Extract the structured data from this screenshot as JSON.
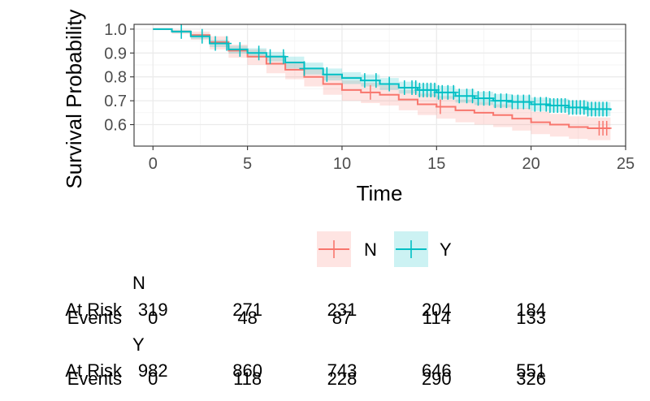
{
  "chart_data": {
    "type": "line",
    "xlabel": "Time",
    "ylabel": "Survival Probability",
    "xlim": [
      -1,
      25
    ],
    "ylim": [
      0.51,
      1.02
    ],
    "x_ticks": [
      "0",
      "5",
      "10",
      "15",
      "20",
      "25"
    ],
    "y_ticks": [
      "0.6",
      "0.7",
      "0.8",
      "0.9",
      "1.0"
    ],
    "grid": true,
    "legend_position": "bottom",
    "series": [
      {
        "name": "N",
        "color": "#F8766D",
        "fill_color": "#F8766D",
        "points": [
          [
            0,
            1.0
          ],
          [
            1,
            0.99
          ],
          [
            2,
            0.975
          ],
          [
            3,
            0.945
          ],
          [
            4,
            0.91
          ],
          [
            5,
            0.885
          ],
          [
            6,
            0.855
          ],
          [
            7,
            0.83
          ],
          [
            8,
            0.8
          ],
          [
            9,
            0.77
          ],
          [
            10,
            0.745
          ],
          [
            11,
            0.735
          ],
          [
            12,
            0.725
          ],
          [
            13,
            0.705
          ],
          [
            14,
            0.685
          ],
          [
            15,
            0.675
          ],
          [
            16,
            0.66
          ],
          [
            17,
            0.65
          ],
          [
            18,
            0.64
          ],
          [
            19,
            0.625
          ],
          [
            20,
            0.61
          ],
          [
            21,
            0.6
          ],
          [
            22,
            0.59
          ],
          [
            23,
            0.585
          ],
          [
            24.2,
            0.585
          ]
        ],
        "ci_upper": [
          [
            0,
            1.0
          ],
          [
            1,
            0.997
          ],
          [
            2,
            0.99
          ],
          [
            3,
            0.97
          ],
          [
            4,
            0.935
          ],
          [
            5,
            0.915
          ],
          [
            6,
            0.89
          ],
          [
            7,
            0.865
          ],
          [
            8,
            0.835
          ],
          [
            9,
            0.81
          ],
          [
            10,
            0.785
          ],
          [
            11,
            0.775
          ],
          [
            12,
            0.765
          ],
          [
            13,
            0.745
          ],
          [
            14,
            0.73
          ],
          [
            15,
            0.72
          ],
          [
            16,
            0.705
          ],
          [
            17,
            0.695
          ],
          [
            18,
            0.685
          ],
          [
            19,
            0.67
          ],
          [
            20,
            0.655
          ],
          [
            21,
            0.645
          ],
          [
            22,
            0.635
          ],
          [
            23,
            0.63
          ],
          [
            24.2,
            0.63
          ]
        ],
        "ci_lower": [
          [
            0,
            1.0
          ],
          [
            1,
            0.98
          ],
          [
            2,
            0.955
          ],
          [
            3,
            0.915
          ],
          [
            4,
            0.88
          ],
          [
            5,
            0.85
          ],
          [
            6,
            0.815
          ],
          [
            7,
            0.79
          ],
          [
            8,
            0.76
          ],
          [
            9,
            0.725
          ],
          [
            10,
            0.7
          ],
          [
            11,
            0.69
          ],
          [
            12,
            0.68
          ],
          [
            13,
            0.66
          ],
          [
            14,
            0.64
          ],
          [
            15,
            0.625
          ],
          [
            16,
            0.61
          ],
          [
            17,
            0.6
          ],
          [
            18,
            0.59
          ],
          [
            19,
            0.575
          ],
          [
            20,
            0.56
          ],
          [
            21,
            0.55
          ],
          [
            22,
            0.54
          ],
          [
            23,
            0.535
          ],
          [
            24.2,
            0.535
          ]
        ],
        "censor_times": [
          11.5,
          15.2,
          23.6,
          23.8,
          24.0
        ]
      },
      {
        "name": "Y",
        "color": "#00BFC4",
        "fill_color": "#00BFC4",
        "points": [
          [
            0,
            1.0
          ],
          [
            1,
            0.99
          ],
          [
            2,
            0.97
          ],
          [
            3,
            0.94
          ],
          [
            4,
            0.915
          ],
          [
            5,
            0.9
          ],
          [
            6,
            0.885
          ],
          [
            7,
            0.86
          ],
          [
            8,
            0.835
          ],
          [
            9,
            0.81
          ],
          [
            10,
            0.795
          ],
          [
            11,
            0.785
          ],
          [
            12,
            0.77
          ],
          [
            13,
            0.755
          ],
          [
            14,
            0.745
          ],
          [
            15,
            0.735
          ],
          [
            16,
            0.72
          ],
          [
            17,
            0.71
          ],
          [
            18,
            0.7
          ],
          [
            19,
            0.695
          ],
          [
            20,
            0.685
          ],
          [
            21,
            0.68
          ],
          [
            22,
            0.672
          ],
          [
            23,
            0.665
          ],
          [
            24.2,
            0.66
          ]
        ],
        "ci_upper": [
          [
            0,
            1.0
          ],
          [
            1,
            0.995
          ],
          [
            2,
            0.98
          ],
          [
            3,
            0.955
          ],
          [
            4,
            0.93
          ],
          [
            5,
            0.92
          ],
          [
            6,
            0.905
          ],
          [
            7,
            0.885
          ],
          [
            8,
            0.86
          ],
          [
            9,
            0.835
          ],
          [
            10,
            0.82
          ],
          [
            11,
            0.81
          ],
          [
            12,
            0.795
          ],
          [
            13,
            0.78
          ],
          [
            14,
            0.772
          ],
          [
            15,
            0.762
          ],
          [
            16,
            0.748
          ],
          [
            17,
            0.738
          ],
          [
            18,
            0.728
          ],
          [
            19,
            0.723
          ],
          [
            20,
            0.713
          ],
          [
            21,
            0.708
          ],
          [
            22,
            0.7
          ],
          [
            23,
            0.694
          ],
          [
            24.2,
            0.69
          ]
        ],
        "ci_lower": [
          [
            0,
            1.0
          ],
          [
            1,
            0.983
          ],
          [
            2,
            0.958
          ],
          [
            3,
            0.925
          ],
          [
            4,
            0.898
          ],
          [
            5,
            0.88
          ],
          [
            6,
            0.865
          ],
          [
            7,
            0.835
          ],
          [
            8,
            0.81
          ],
          [
            9,
            0.785
          ],
          [
            10,
            0.77
          ],
          [
            11,
            0.76
          ],
          [
            12,
            0.745
          ],
          [
            13,
            0.73
          ],
          [
            14,
            0.718
          ],
          [
            15,
            0.708
          ],
          [
            16,
            0.692
          ],
          [
            17,
            0.682
          ],
          [
            18,
            0.672
          ],
          [
            19,
            0.667
          ],
          [
            20,
            0.657
          ],
          [
            21,
            0.652
          ],
          [
            22,
            0.644
          ],
          [
            23,
            0.636
          ],
          [
            24.2,
            0.63
          ]
        ],
        "censor_times": [
          1.5,
          2.6,
          3.3,
          3.9,
          4.6,
          5.6,
          6.2,
          6.9,
          8.0,
          9.2,
          11.2,
          11.8,
          12.5,
          13.3,
          13.7,
          13.9,
          14.1,
          14.3,
          14.5,
          14.7,
          14.9,
          15.1,
          15.3,
          15.6,
          15.9,
          16.2,
          16.6,
          16.9,
          17.2,
          17.5,
          17.8,
          18.1,
          18.4,
          18.7,
          19.0,
          19.3,
          19.6,
          19.9,
          20.2,
          20.5,
          20.8,
          21.0,
          21.2,
          21.4,
          21.6,
          21.8,
          22.0,
          22.2,
          22.4,
          22.6,
          22.8,
          23.0,
          23.2,
          23.4,
          23.6,
          23.8,
          24.0
        ]
      }
    ]
  },
  "risk_table": {
    "groups": [
      {
        "name": "N",
        "at_risk_label": "At Risk",
        "events_label": "Events",
        "at_risk": [
          "319",
          "271",
          "231",
          "204",
          "184"
        ],
        "events": [
          "0",
          "48",
          "87",
          "114",
          "133"
        ]
      },
      {
        "name": "Y",
        "at_risk_label": "At Risk",
        "events_label": "Events",
        "at_risk": [
          "982",
          "860",
          "743",
          "646",
          "551"
        ],
        "events": [
          "0",
          "118",
          "228",
          "290",
          "326"
        ]
      }
    ]
  }
}
